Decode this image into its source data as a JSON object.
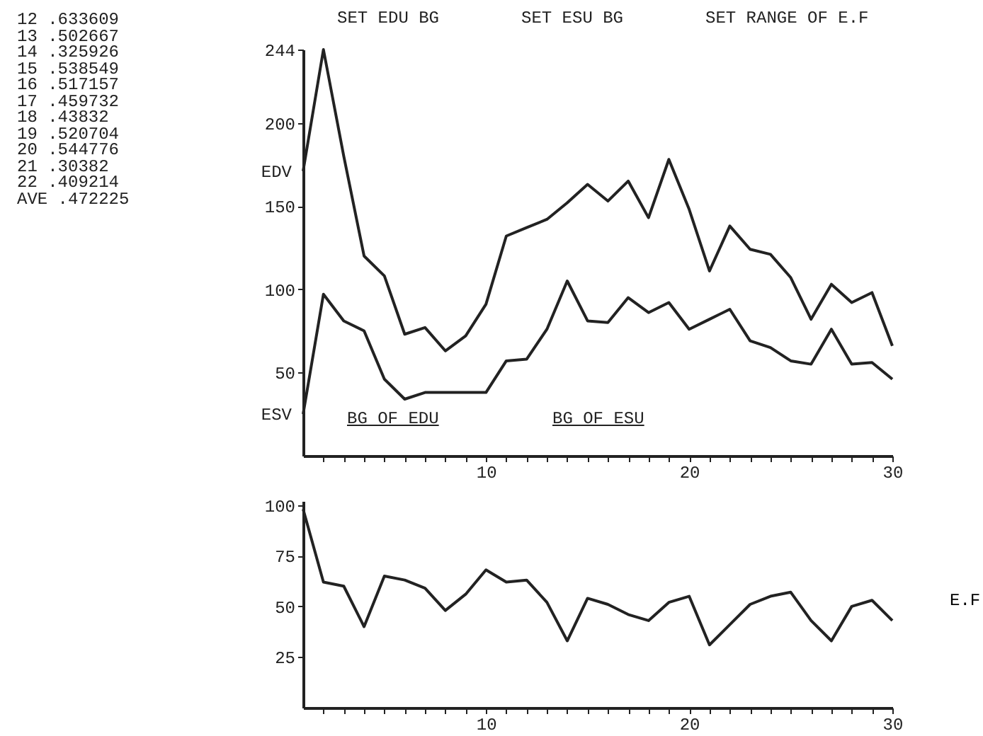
{
  "chart_data": [
    {
      "type": "line",
      "x": [
        1,
        2,
        3,
        4,
        5,
        6,
        7,
        8,
        9,
        10,
        11,
        12,
        13,
        14,
        15,
        16,
        17,
        18,
        19,
        20,
        21,
        22,
        23,
        24,
        25,
        26,
        27,
        28,
        29,
        30
      ],
      "series": [
        {
          "name": "EDV",
          "color": "#222222",
          "values": [
            171,
            244,
            180,
            120,
            108,
            73,
            77,
            63,
            72,
            91,
            132,
            137,
            142,
            152,
            163,
            153,
            165,
            143,
            178,
            148,
            111,
            138,
            124,
            121,
            107,
            82,
            103,
            92,
            98,
            66
          ]
        },
        {
          "name": "ESV",
          "color": "#222222",
          "values": [
            25,
            97,
            81,
            75,
            46,
            34,
            38,
            38,
            38,
            38,
            57,
            58,
            76,
            105,
            81,
            80,
            95,
            86,
            92,
            76,
            82,
            88,
            69,
            65,
            57,
            55,
            76,
            55,
            56,
            46
          ]
        }
      ],
      "xlim": [
        1,
        30
      ],
      "xticks": [
        {
          "value": 2,
          "label": null
        },
        {
          "value": 3,
          "label": null
        },
        {
          "value": 4,
          "label": null
        },
        {
          "value": 5,
          "label": null
        },
        {
          "value": 6,
          "label": null
        },
        {
          "value": 7,
          "label": null
        },
        {
          "value": 8,
          "label": null
        },
        {
          "value": 9,
          "label": null
        },
        10,
        {
          "value": 11,
          "label": null
        },
        {
          "value": 12,
          "label": null
        },
        {
          "value": 13,
          "label": null
        },
        {
          "value": 14,
          "label": null
        },
        {
          "value": 15,
          "label": null
        },
        {
          "value": 16,
          "label": null
        },
        {
          "value": 17,
          "label": null
        },
        {
          "value": 18,
          "label": null
        },
        {
          "value": 19,
          "label": null
        },
        20,
        {
          "value": 21,
          "label": null
        },
        {
          "value": 22,
          "label": null
        },
        {
          "value": 23,
          "label": null
        },
        {
          "value": 24,
          "label": null
        },
        {
          "value": 25,
          "label": null
        },
        {
          "value": 26,
          "label": null
        },
        {
          "value": 27,
          "label": null
        },
        {
          "value": 28,
          "label": null
        },
        {
          "value": 29,
          "label": null
        },
        30
      ],
      "ylim": [
        0,
        244
      ],
      "yticks": [
        50,
        100,
        150,
        200,
        244
      ],
      "line_style": "solid",
      "annotations": [
        "12 .633609",
        "13 .502667",
        "14 .325926",
        "15 .538549",
        "16 .517157",
        "17 .459732",
        "18 .43832",
        "19 .520704",
        "20 .544776",
        "21 .30382",
        "22 .409214",
        "AVE .472225",
        "SET EDU BG",
        "SET ESU BG",
        "SET RANGE OF E.F",
        "BG OF EDU",
        "BG OF ESU"
      ]
    },
    {
      "type": "line",
      "x": [
        1,
        2,
        3,
        4,
        5,
        6,
        7,
        8,
        9,
        10,
        11,
        12,
        13,
        14,
        15,
        16,
        17,
        18,
        19,
        20,
        21,
        22,
        23,
        24,
        25,
        26,
        27,
        28,
        29,
        30
      ],
      "series": [
        {
          "color": "#222222",
          "values": [
            98,
            62,
            60,
            40,
            65,
            63,
            59,
            48,
            56,
            68,
            62,
            63,
            52,
            33,
            54,
            51,
            46,
            43,
            52,
            55,
            31,
            41,
            51,
            55,
            57,
            43,
            33,
            50,
            53,
            43
          ]
        }
      ],
      "xlim": [
        1,
        30
      ],
      "xticks": [
        {
          "value": 2,
          "label": null
        },
        {
          "value": 3,
          "label": null
        },
        {
          "value": 4,
          "label": null
        },
        {
          "value": 5,
          "label": null
        },
        {
          "value": 6,
          "label": null
        },
        {
          "value": 7,
          "label": null
        },
        {
          "value": 8,
          "label": null
        },
        {
          "value": 9,
          "label": null
        },
        10,
        {
          "value": 11,
          "label": null
        },
        {
          "value": 12,
          "label": null
        },
        {
          "value": 13,
          "label": null
        },
        {
          "value": 14,
          "label": null
        },
        {
          "value": 15,
          "label": null
        },
        {
          "value": 16,
          "label": null
        },
        {
          "value": 17,
          "label": null
        },
        {
          "value": 18,
          "label": null
        },
        {
          "value": 19,
          "label": null
        },
        20,
        {
          "value": 21,
          "label": null
        },
        {
          "value": 22,
          "label": null
        },
        {
          "value": 23,
          "label": null
        },
        {
          "value": 24,
          "label": null
        },
        {
          "value": 25,
          "label": null
        },
        {
          "value": 26,
          "label": null
        },
        {
          "value": 27,
          "label": null
        },
        {
          "value": 28,
          "label": null
        },
        {
          "value": 29,
          "label": null
        },
        30
      ],
      "ylim": [
        0,
        102
      ],
      "yticks": [
        25,
        50,
        75,
        100
      ],
      "ylabel": "E.F",
      "line_style": "solid"
    }
  ]
}
